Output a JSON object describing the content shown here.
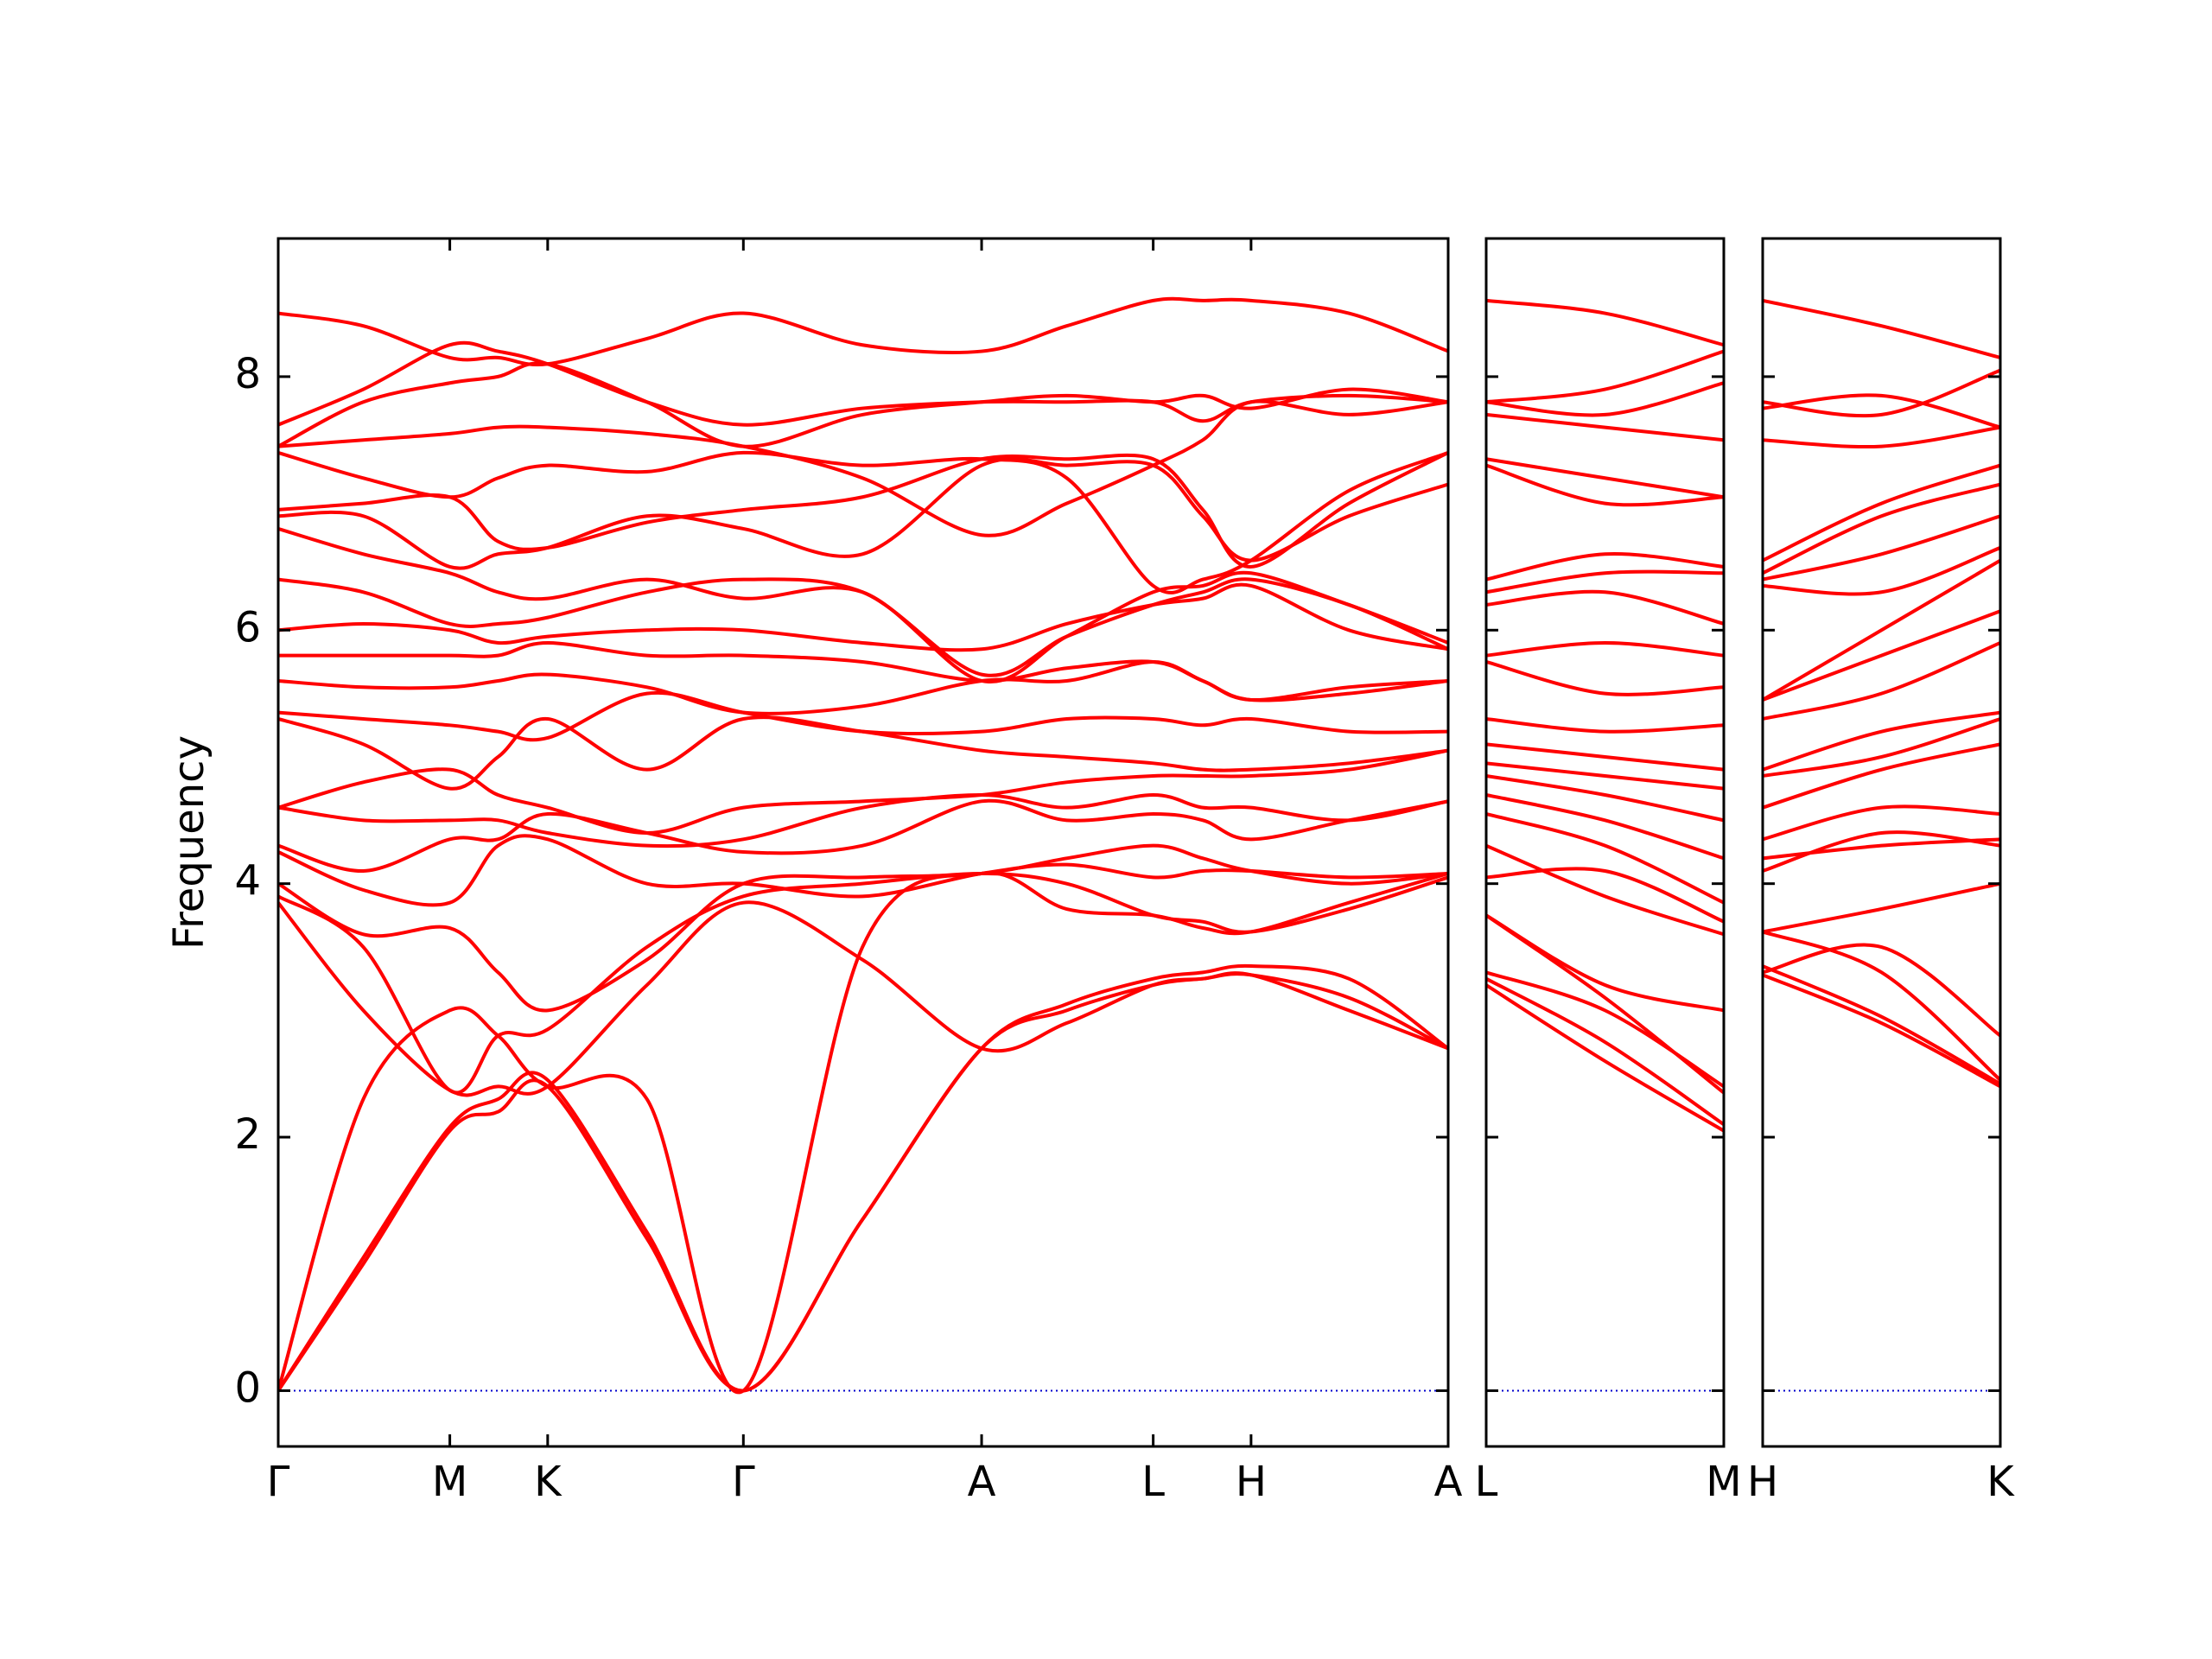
{
  "chart_data": [
    {
      "type": "line",
      "ylabel": "Frequency",
      "color": "#ff0000",
      "zero_line": {
        "value": 0,
        "color": "#0000cc"
      },
      "x": [
        0,
        0.6,
        1.21,
        1.55,
        1.9,
        2.6,
        3.28,
        4.12,
        4.96,
        5.56,
        6.17,
        6.52,
        6.86,
        7.55,
        8.25
      ],
      "xlim": [
        0,
        8.25
      ],
      "xticks": [
        {
          "value": 0,
          "label": "Γ"
        },
        {
          "value": 1.21,
          "label": "M"
        },
        {
          "value": 1.9,
          "label": "K"
        },
        {
          "value": 3.28,
          "label": "Γ"
        },
        {
          "value": 4.96,
          "label": "A"
        },
        {
          "value": 6.17,
          "label": "L"
        },
        {
          "value": 6.86,
          "label": "H"
        },
        {
          "value": 8.25,
          "label": "A"
        }
      ],
      "ylim": [
        -0.44,
        9.09
      ],
      "yticks": [
        0,
        2,
        4,
        6,
        8
      ],
      "series": [
        {
          "values": [
            0,
            1.0,
            2.05,
            2.2,
            2.4,
            1.2,
            0,
            1.35,
            2.7,
            3.0,
            3.2,
            3.25,
            3.28,
            3.1,
            2.7
          ]
        },
        {
          "values": [
            0,
            1.05,
            2.08,
            2.3,
            2.45,
            1.25,
            0,
            1.35,
            2.7,
            3.05,
            3.25,
            3.3,
            3.35,
            3.25,
            2.7
          ]
        },
        {
          "values": [
            0,
            2.3,
            3.0,
            2.8,
            2.4,
            2.3,
            0,
            3.5,
            4.08,
            3.8,
            3.75,
            3.65,
            3.62,
            3.85,
            4.08
          ]
        },
        {
          "values": [
            3.85,
            3.0,
            2.37,
            2.4,
            2.4,
            3.2,
            3.85,
            3.4,
            2.7,
            2.9,
            3.2,
            3.25,
            3.28,
            3.0,
            2.7
          ]
        },
        {
          "values": [
            3.9,
            3.5,
            2.37,
            2.8,
            2.85,
            3.5,
            3.9,
            4.0,
            4.08,
            4.0,
            3.75,
            3.7,
            3.62,
            3.8,
            4.05
          ]
        },
        {
          "values": [
            4.0,
            3.6,
            3.65,
            3.3,
            3.0,
            3.4,
            4.0,
            4.05,
            4.08,
            4.2,
            4.3,
            4.2,
            4.1,
            4.0,
            4.08
          ]
        },
        {
          "values": [
            4.25,
            3.95,
            3.85,
            4.3,
            4.35,
            4.0,
            4.0,
            3.9,
            4.08,
            4.15,
            4.05,
            4.1,
            4.1,
            4.05,
            4.08
          ]
        },
        {
          "values": [
            4.3,
            4.1,
            4.35,
            4.35,
            4.55,
            4.4,
            4.25,
            4.3,
            4.65,
            4.5,
            4.55,
            4.5,
            4.35,
            4.5,
            4.65
          ]
        },
        {
          "values": [
            4.6,
            4.5,
            4.5,
            4.5,
            4.4,
            4.3,
            4.35,
            4.6,
            4.7,
            4.6,
            4.7,
            4.6,
            4.6,
            4.5,
            4.65
          ]
        },
        {
          "values": [
            4.6,
            4.8,
            4.9,
            4.7,
            4.6,
            4.4,
            4.6,
            4.65,
            4.7,
            4.8,
            4.85,
            4.85,
            4.85,
            4.9,
            5.05
          ]
        },
        {
          "values": [
            5.3,
            5.1,
            4.75,
            5.0,
            5.3,
            4.9,
            5.3,
            5.2,
            5.05,
            5.0,
            4.95,
            4.9,
            4.9,
            4.95,
            5.05
          ]
        },
        {
          "values": [
            5.35,
            5.3,
            5.25,
            5.2,
            5.15,
            5.5,
            5.35,
            5.2,
            5.2,
            5.3,
            5.3,
            5.25,
            5.3,
            5.2,
            5.2
          ]
        },
        {
          "values": [
            5.6,
            5.55,
            5.55,
            5.6,
            5.65,
            5.55,
            5.35,
            5.4,
            5.6,
            5.6,
            5.75,
            5.6,
            5.45,
            5.5,
            5.6
          ]
        },
        {
          "values": [
            5.8,
            5.8,
            5.8,
            5.8,
            5.9,
            5.8,
            5.8,
            5.75,
            5.6,
            5.7,
            5.75,
            5.6,
            5.45,
            5.55,
            5.6
          ]
        },
        {
          "values": [
            6.0,
            6.05,
            6.0,
            5.9,
            5.95,
            6.0,
            6.0,
            5.9,
            5.85,
            6.05,
            6.2,
            6.25,
            6.35,
            6.0,
            5.85
          ]
        },
        {
          "values": [
            6.4,
            6.3,
            6.05,
            6.05,
            6.1,
            6.3,
            6.4,
            6.3,
            5.65,
            5.95,
            6.2,
            6.3,
            6.4,
            6.2,
            5.85
          ]
        },
        {
          "values": [
            6.8,
            6.6,
            6.45,
            6.3,
            6.25,
            6.4,
            6.25,
            6.3,
            5.6,
            5.95,
            6.3,
            6.35,
            6.45,
            6.2,
            5.9
          ]
        },
        {
          "values": [
            6.9,
            6.9,
            6.5,
            6.6,
            6.65,
            6.9,
            6.8,
            6.6,
            7.3,
            7.3,
            7.3,
            6.9,
            6.55,
            6.9,
            7.15
          ]
        },
        {
          "values": [
            6.95,
            7.0,
            7.05,
            6.7,
            6.65,
            6.85,
            6.95,
            7.05,
            7.35,
            7.35,
            7.35,
            6.95,
            6.5,
            7.0,
            7.4
          ]
        },
        {
          "values": [
            7.4,
            7.2,
            7.05,
            7.2,
            7.3,
            7.25,
            7.4,
            7.3,
            7.35,
            7.2,
            6.35,
            6.4,
            6.55,
            7.1,
            7.4
          ]
        },
        {
          "values": [
            7.45,
            7.5,
            7.55,
            7.6,
            7.6,
            7.55,
            7.45,
            7.2,
            6.75,
            7.0,
            7.3,
            7.5,
            7.8,
            7.7,
            7.8
          ]
        },
        {
          "values": [
            7.45,
            7.8,
            7.95,
            8.0,
            8.1,
            7.8,
            7.45,
            7.7,
            7.8,
            7.85,
            7.8,
            7.85,
            7.75,
            7.9,
            7.8
          ]
        },
        {
          "values": [
            7.62,
            7.9,
            8.25,
            8.2,
            8.1,
            7.8,
            7.62,
            7.75,
            7.8,
            7.8,
            7.8,
            7.65,
            7.8,
            7.85,
            7.8
          ]
        },
        {
          "values": [
            8.5,
            8.4,
            8.15,
            8.15,
            8.1,
            8.3,
            8.5,
            8.25,
            8.2,
            8.4,
            8.6,
            8.6,
            8.6,
            8.5,
            8.2
          ]
        }
      ]
    },
    {
      "type": "line",
      "color": "#ff0000",
      "zero_line": {
        "value": 0,
        "color": "#0000cc"
      },
      "x": [
        0,
        0.84,
        1.68
      ],
      "xlim": [
        0,
        1.68
      ],
      "xticks": [
        {
          "value": 0,
          "label": "L"
        },
        {
          "value": 1.68,
          "label": "M"
        }
      ],
      "ylim": [
        -0.44,
        9.09
      ],
      "series": [
        {
          "values": [
            3.2,
            2.6,
            2.05
          ]
        },
        {
          "values": [
            3.25,
            2.75,
            2.1
          ]
        },
        {
          "values": [
            3.75,
            3.1,
            2.35
          ]
        },
        {
          "values": [
            3.3,
            3.0,
            2.4
          ]
        },
        {
          "values": [
            3.75,
            3.2,
            3.0
          ]
        },
        {
          "values": [
            4.3,
            3.9,
            3.6
          ]
        },
        {
          "values": [
            4.05,
            4.1,
            3.7
          ]
        },
        {
          "values": [
            4.55,
            4.3,
            3.85
          ]
        },
        {
          "values": [
            4.7,
            4.5,
            4.2
          ]
        },
        {
          "values": [
            4.85,
            4.7,
            4.5
          ]
        },
        {
          "values": [
            4.95,
            4.85,
            4.75
          ]
        },
        {
          "values": [
            5.1,
            5.0,
            4.9
          ]
        },
        {
          "values": [
            5.3,
            5.2,
            5.25
          ]
        },
        {
          "values": [
            5.75,
            5.5,
            5.55
          ]
        },
        {
          "values": [
            5.8,
            5.9,
            5.8
          ]
        },
        {
          "values": [
            6.2,
            6.3,
            6.05
          ]
        },
        {
          "values": [
            6.3,
            6.45,
            6.45
          ]
        },
        {
          "values": [
            6.4,
            6.6,
            6.5
          ]
        },
        {
          "values": [
            7.3,
            7.0,
            7.05
          ]
        },
        {
          "values": [
            7.35,
            7.2,
            7.05
          ]
        },
        {
          "values": [
            7.7,
            7.6,
            7.5
          ]
        },
        {
          "values": [
            7.8,
            7.7,
            7.95
          ]
        },
        {
          "values": [
            7.8,
            7.9,
            8.2
          ]
        },
        {
          "values": [
            8.6,
            8.5,
            8.25
          ]
        }
      ]
    },
    {
      "type": "line",
      "color": "#ff0000",
      "zero_line": {
        "value": 0,
        "color": "#0000cc"
      },
      "x": [
        0,
        0.84,
        1.68
      ],
      "xlim": [
        0,
        1.68
      ],
      "xticks": [
        {
          "value": 0,
          "label": "H"
        },
        {
          "value": 1.68,
          "label": "K"
        }
      ],
      "ylim": [
        -0.44,
        9.09
      ],
      "series": [
        {
          "values": [
            3.28,
            2.9,
            2.4
          ]
        },
        {
          "values": [
            3.35,
            2.95,
            2.42
          ]
        },
        {
          "values": [
            3.62,
            3.3,
            2.45
          ]
        },
        {
          "values": [
            3.3,
            3.5,
            2.8
          ]
        },
        {
          "values": [
            3.62,
            3.8,
            4.0
          ]
        },
        {
          "values": [
            4.1,
            4.4,
            4.3
          ]
        },
        {
          "values": [
            4.2,
            4.3,
            4.35
          ]
        },
        {
          "values": [
            4.35,
            4.6,
            4.55
          ]
        },
        {
          "values": [
            4.6,
            4.9,
            5.1
          ]
        },
        {
          "values": [
            4.85,
            5.0,
            5.3
          ]
        },
        {
          "values": [
            4.9,
            5.2,
            5.35
          ]
        },
        {
          "values": [
            5.3,
            5.5,
            5.9
          ]
        },
        {
          "values": [
            5.45,
            5.8,
            6.15
          ]
        },
        {
          "values": [
            5.45,
            6.0,
            6.55
          ]
        },
        {
          "values": [
            6.35,
            6.3,
            6.65
          ]
        },
        {
          "values": [
            6.4,
            6.6,
            6.9
          ]
        },
        {
          "values": [
            6.45,
            6.9,
            7.15
          ]
        },
        {
          "values": [
            6.55,
            7.0,
            7.3
          ]
        },
        {
          "values": [
            7.5,
            7.45,
            7.6
          ]
        },
        {
          "values": [
            7.8,
            7.7,
            8.05
          ]
        },
        {
          "values": [
            7.75,
            7.85,
            7.6
          ]
        },
        {
          "values": [
            8.6,
            8.4,
            8.15
          ]
        }
      ]
    }
  ]
}
